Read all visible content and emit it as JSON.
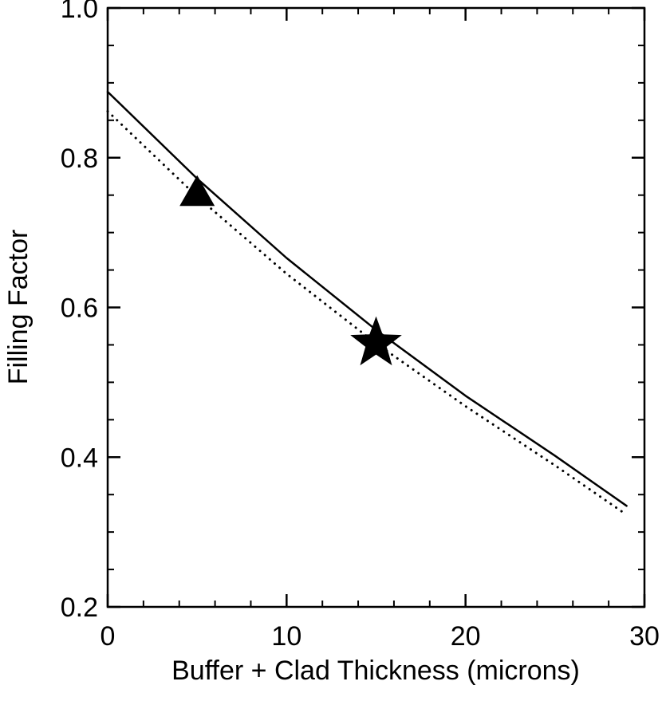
{
  "chart_data": {
    "type": "line",
    "title": "",
    "xlabel": "Buffer + Clad Thickness (microns)",
    "ylabel": "Filling Factor",
    "xlim": [
      0,
      30
    ],
    "ylim": [
      0.2,
      1.0
    ],
    "x_ticks": [
      0,
      10,
      20,
      30
    ],
    "x_tick_labels": [
      "0",
      "10",
      "20",
      "30"
    ],
    "y_ticks": [
      0.2,
      0.4,
      0.6,
      0.8,
      1.0
    ],
    "y_tick_labels": [
      "0.2",
      "0.4",
      "0.6",
      "0.8",
      "1.0"
    ],
    "x_minor_step": 2,
    "y_minor_step": 0.05,
    "grid": false,
    "series": [
      {
        "style": "solid",
        "color": "#000000",
        "x": [
          0,
          5,
          10,
          15,
          20,
          25,
          29
        ],
        "y": [
          0.888,
          0.772,
          0.666,
          0.57,
          0.482,
          0.402,
          0.335
        ]
      },
      {
        "style": "dotted",
        "color": "#000000",
        "x": [
          0,
          5,
          10,
          15,
          20,
          25,
          29
        ],
        "y": [
          0.862,
          0.748,
          0.645,
          0.552,
          0.468,
          0.389,
          0.323
        ]
      }
    ],
    "markers": [
      {
        "shape": "triangle",
        "x": 5,
        "y": 0.752,
        "color": "#000000"
      },
      {
        "shape": "star",
        "x": 15,
        "y": 0.552,
        "color": "#000000"
      }
    ]
  }
}
